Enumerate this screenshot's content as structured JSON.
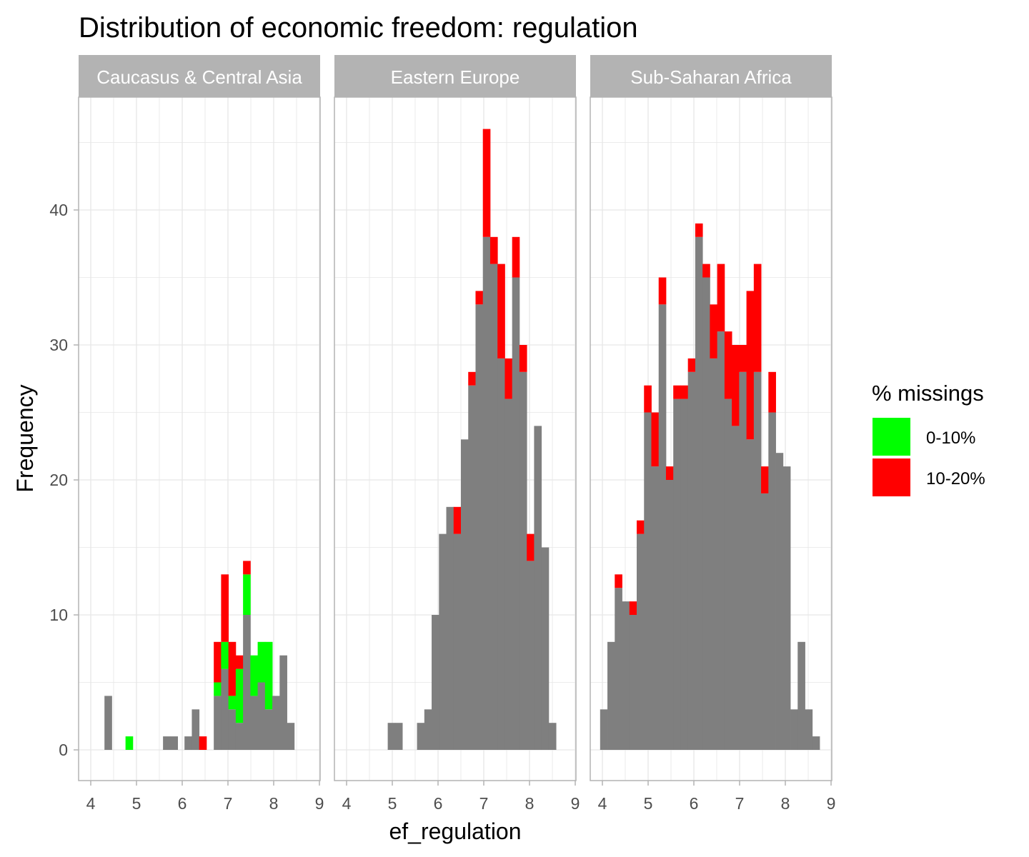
{
  "chart_data": {
    "type": "bar",
    "title": "Distribution of economic freedom: regulation",
    "xlabel": "ef_regulation",
    "ylabel": "Frequency",
    "xlim": [
      4,
      9
    ],
    "ylim": [
      0,
      47
    ],
    "x_ticks": [
      "4",
      "5",
      "6",
      "7",
      "8",
      "9"
    ],
    "y_ticks": [
      "0",
      "10",
      "20",
      "30",
      "40"
    ],
    "bin_width": 0.16,
    "grid": true,
    "legend_position": "right",
    "legend": {
      "title": "% missings",
      "items": [
        {
          "label": "0-10%",
          "color": "#00ff00"
        },
        {
          "label": "10-20%",
          "color": "#ff0000"
        }
      ]
    },
    "colors": {
      "none": "#7f7f7f",
      "0-10%": "#00ff00",
      "10-20%": "#ff0000",
      "strip": "#b3b3b3",
      "grid": "#e6e6e6"
    },
    "panels": [
      {
        "name": "Caucasus & Central Asia",
        "bins": [
          {
            "x": 4.38,
            "grey": 4,
            "green": 0,
            "red": 0
          },
          {
            "x": 4.84,
            "grey": 0,
            "green": 1,
            "red": 0
          },
          {
            "x": 5.66,
            "grey": 1,
            "green": 0,
            "red": 0
          },
          {
            "x": 5.82,
            "grey": 1,
            "green": 0,
            "red": 0
          },
          {
            "x": 6.13,
            "grey": 1,
            "green": 0,
            "red": 0
          },
          {
            "x": 6.29,
            "grey": 3,
            "green": 0,
            "red": 0
          },
          {
            "x": 6.45,
            "grey": 0,
            "green": 0,
            "red": 1
          },
          {
            "x": 6.77,
            "grey": 4,
            "green": 1,
            "red": 3
          },
          {
            "x": 6.93,
            "grey": 6,
            "green": 2,
            "red": 5
          },
          {
            "x": 7.09,
            "grey": 3,
            "green": 1,
            "red": 4
          },
          {
            "x": 7.25,
            "grey": 2,
            "green": 4,
            "red": 1
          },
          {
            "x": 7.41,
            "grey": 10,
            "green": 3,
            "red": 1
          },
          {
            "x": 7.57,
            "grey": 4,
            "green": 3,
            "red": 0
          },
          {
            "x": 7.73,
            "grey": 5,
            "green": 3,
            "red": 0
          },
          {
            "x": 7.89,
            "grey": 3,
            "green": 5,
            "red": 0
          },
          {
            "x": 8.05,
            "grey": 4,
            "green": 0,
            "red": 0
          },
          {
            "x": 8.21,
            "grey": 7,
            "green": 0,
            "red": 0
          },
          {
            "x": 8.37,
            "grey": 2,
            "green": 0,
            "red": 0
          }
        ]
      },
      {
        "name": "Eastern Europe",
        "bins": [
          {
            "x": 4.98,
            "grey": 2,
            "green": 0,
            "red": 0
          },
          {
            "x": 5.14,
            "grey": 2,
            "green": 0,
            "red": 0
          },
          {
            "x": 5.62,
            "grey": 2,
            "green": 0,
            "red": 0
          },
          {
            "x": 5.78,
            "grey": 3,
            "green": 0,
            "red": 0
          },
          {
            "x": 5.94,
            "grey": 10,
            "green": 0,
            "red": 0
          },
          {
            "x": 6.1,
            "grey": 16,
            "green": 0,
            "red": 0
          },
          {
            "x": 6.26,
            "grey": 18,
            "green": 0,
            "red": 0
          },
          {
            "x": 6.42,
            "grey": 16,
            "green": 0,
            "red": 2
          },
          {
            "x": 6.58,
            "grey": 23,
            "green": 0,
            "red": 0
          },
          {
            "x": 6.74,
            "grey": 27,
            "green": 0,
            "red": 1
          },
          {
            "x": 6.9,
            "grey": 33,
            "green": 0,
            "red": 1
          },
          {
            "x": 7.06,
            "grey": 38,
            "green": 0,
            "red": 8
          },
          {
            "x": 7.22,
            "grey": 36,
            "green": 0,
            "red": 2
          },
          {
            "x": 7.38,
            "grey": 29,
            "green": 0,
            "red": 7
          },
          {
            "x": 7.54,
            "grey": 26,
            "green": 0,
            "red": 3
          },
          {
            "x": 7.7,
            "grey": 35,
            "green": 0,
            "red": 3
          },
          {
            "x": 7.86,
            "grey": 28,
            "green": 0,
            "red": 2
          },
          {
            "x": 8.02,
            "grey": 14,
            "green": 0,
            "red": 2
          },
          {
            "x": 8.18,
            "grey": 24,
            "green": 0,
            "red": 0
          },
          {
            "x": 8.34,
            "grey": 15,
            "green": 0,
            "red": 0
          },
          {
            "x": 8.5,
            "grey": 2,
            "green": 0,
            "red": 0
          }
        ]
      },
      {
        "name": "Sub-Saharan Africa",
        "bins": [
          {
            "x": 4.03,
            "grey": 3,
            "green": 0,
            "red": 0
          },
          {
            "x": 4.19,
            "grey": 8,
            "green": 0,
            "red": 0
          },
          {
            "x": 4.35,
            "grey": 12,
            "green": 0,
            "red": 1
          },
          {
            "x": 4.51,
            "grey": 11,
            "green": 0,
            "red": 0
          },
          {
            "x": 4.67,
            "grey": 10,
            "green": 0,
            "red": 1
          },
          {
            "x": 4.83,
            "grey": 16,
            "green": 0,
            "red": 1
          },
          {
            "x": 4.99,
            "grey": 25,
            "green": 0,
            "red": 2
          },
          {
            "x": 5.15,
            "grey": 21,
            "green": 0,
            "red": 4
          },
          {
            "x": 5.31,
            "grey": 33,
            "green": 0,
            "red": 2
          },
          {
            "x": 5.47,
            "grey": 20,
            "green": 0,
            "red": 1
          },
          {
            "x": 5.63,
            "grey": 26,
            "green": 0,
            "red": 1
          },
          {
            "x": 5.79,
            "grey": 26,
            "green": 0,
            "red": 1
          },
          {
            "x": 5.95,
            "grey": 28,
            "green": 0,
            "red": 1
          },
          {
            "x": 6.11,
            "grey": 38,
            "green": 0,
            "red": 1
          },
          {
            "x": 6.27,
            "grey": 35,
            "green": 0,
            "red": 1
          },
          {
            "x": 6.43,
            "grey": 29,
            "green": 0,
            "red": 4
          },
          {
            "x": 6.59,
            "grey": 31,
            "green": 0,
            "red": 5
          },
          {
            "x": 6.75,
            "grey": 26,
            "green": 0,
            "red": 5
          },
          {
            "x": 6.91,
            "grey": 24,
            "green": 0,
            "red": 6
          },
          {
            "x": 7.07,
            "grey": 28,
            "green": 0,
            "red": 2
          },
          {
            "x": 7.23,
            "grey": 23,
            "green": 0,
            "red": 11
          },
          {
            "x": 7.39,
            "grey": 28,
            "green": 0,
            "red": 8
          },
          {
            "x": 7.55,
            "grey": 19,
            "green": 0,
            "red": 2
          },
          {
            "x": 7.71,
            "grey": 25,
            "green": 0,
            "red": 3
          },
          {
            "x": 7.87,
            "grey": 22,
            "green": 0,
            "red": 0
          },
          {
            "x": 8.03,
            "grey": 21,
            "green": 0,
            "red": 0
          },
          {
            "x": 8.19,
            "grey": 3,
            "green": 0,
            "red": 0
          },
          {
            "x": 8.35,
            "grey": 8,
            "green": 0,
            "red": 0
          },
          {
            "x": 8.51,
            "grey": 3,
            "green": 0,
            "red": 0
          },
          {
            "x": 8.67,
            "grey": 1,
            "green": 0,
            "red": 0
          }
        ]
      }
    ]
  }
}
